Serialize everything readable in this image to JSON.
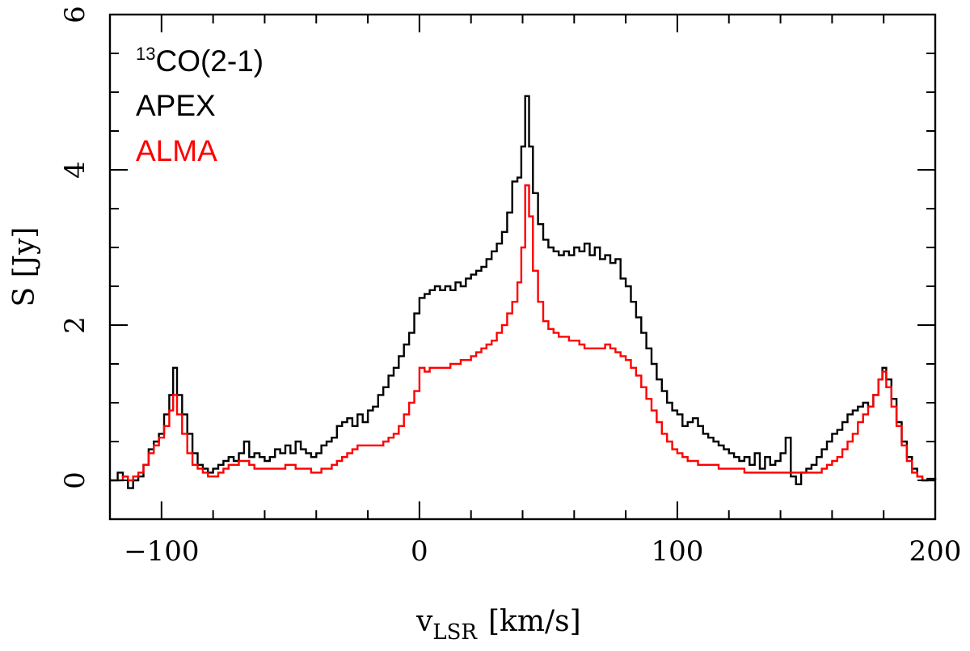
{
  "chart_data": {
    "type": "line",
    "style": "step",
    "xlabel": "v",
    "xlabel_sub": "LSR",
    "xlabel_units": "[km/s]",
    "ylabel": "S [Jy]",
    "xlim": [
      -120,
      200
    ],
    "ylim": [
      -0.5,
      6
    ],
    "xticks": [
      -100,
      0,
      100,
      200
    ],
    "xticklabels": [
      "−100",
      "0",
      "100",
      "200"
    ],
    "yticks": [
      0,
      2,
      4,
      6
    ],
    "yticklabels": [
      "0",
      "2",
      "4",
      "6"
    ],
    "legend": {
      "position": "top-left",
      "title_sup": "13",
      "title_main": "CO(2-1)",
      "entries": [
        {
          "label": "APEX",
          "color": "#000000"
        },
        {
          "label": "ALMA",
          "color": "#ff0000"
        }
      ]
    },
    "series": [
      {
        "name": "APEX",
        "color": "#000000",
        "points": [
          [
            -120,
            0.0
          ],
          [
            -117,
            0.1
          ],
          [
            -115,
            0.05
          ],
          [
            -113,
            -0.1
          ],
          [
            -111,
            0.0
          ],
          [
            -109,
            0.05
          ],
          [
            -107,
            0.2
          ],
          [
            -105,
            0.4
          ],
          [
            -103,
            0.5
          ],
          [
            -101,
            0.6
          ],
          [
            -99,
            0.85
          ],
          [
            -97,
            1.1
          ],
          [
            -95.5,
            1.45
          ],
          [
            -94,
            1.1
          ],
          [
            -92,
            0.85
          ],
          [
            -90,
            0.6
          ],
          [
            -88,
            0.35
          ],
          [
            -86,
            0.2
          ],
          [
            -84,
            0.15
          ],
          [
            -82,
            0.1
          ],
          [
            -80,
            0.15
          ],
          [
            -78,
            0.2
          ],
          [
            -76,
            0.25
          ],
          [
            -74,
            0.3
          ],
          [
            -72,
            0.25
          ],
          [
            -70,
            0.35
          ],
          [
            -68,
            0.5
          ],
          [
            -66,
            0.3
          ],
          [
            -64,
            0.35
          ],
          [
            -62,
            0.3
          ],
          [
            -60,
            0.25
          ],
          [
            -58,
            0.3
          ],
          [
            -56,
            0.4
          ],
          [
            -54,
            0.35
          ],
          [
            -52,
            0.45
          ],
          [
            -50,
            0.35
          ],
          [
            -48,
            0.5
          ],
          [
            -46,
            0.4
          ],
          [
            -44,
            0.35
          ],
          [
            -42,
            0.3
          ],
          [
            -40,
            0.35
          ],
          [
            -38,
            0.45
          ],
          [
            -36,
            0.5
          ],
          [
            -34,
            0.55
          ],
          [
            -32,
            0.7
          ],
          [
            -30,
            0.75
          ],
          [
            -28,
            0.8
          ],
          [
            -26,
            0.7
          ],
          [
            -24,
            0.85
          ],
          [
            -22,
            0.75
          ],
          [
            -20,
            0.9
          ],
          [
            -18,
            0.95
          ],
          [
            -16,
            1.1
          ],
          [
            -14,
            1.2
          ],
          [
            -12,
            1.35
          ],
          [
            -10,
            1.45
          ],
          [
            -8,
            1.6
          ],
          [
            -6,
            1.75
          ],
          [
            -4,
            1.9
          ],
          [
            -2,
            2.15
          ],
          [
            0,
            2.35
          ],
          [
            2,
            2.4
          ],
          [
            4,
            2.45
          ],
          [
            6,
            2.5
          ],
          [
            8,
            2.45
          ],
          [
            10,
            2.5
          ],
          [
            12,
            2.45
          ],
          [
            14,
            2.55
          ],
          [
            16,
            2.5
          ],
          [
            18,
            2.6
          ],
          [
            20,
            2.65
          ],
          [
            22,
            2.7
          ],
          [
            24,
            2.75
          ],
          [
            26,
            2.85
          ],
          [
            28,
            2.95
          ],
          [
            30,
            3.05
          ],
          [
            32,
            3.2
          ],
          [
            34,
            3.45
          ],
          [
            36,
            3.85
          ],
          [
            38,
            3.9
          ],
          [
            39.5,
            4.3
          ],
          [
            41,
            4.95
          ],
          [
            42.5,
            4.3
          ],
          [
            44,
            3.7
          ],
          [
            46,
            3.3
          ],
          [
            48,
            3.1
          ],
          [
            50,
            3.0
          ],
          [
            52,
            2.95
          ],
          [
            54,
            2.9
          ],
          [
            56,
            2.95
          ],
          [
            58,
            2.9
          ],
          [
            60,
            3.0
          ],
          [
            62,
            2.95
          ],
          [
            64,
            3.05
          ],
          [
            66,
            2.9
          ],
          [
            68,
            3.0
          ],
          [
            70,
            2.85
          ],
          [
            72,
            2.9
          ],
          [
            74,
            2.8
          ],
          [
            76,
            2.85
          ],
          [
            78,
            2.6
          ],
          [
            80,
            2.5
          ],
          [
            82,
            2.3
          ],
          [
            84,
            2.1
          ],
          [
            86,
            1.9
          ],
          [
            88,
            1.7
          ],
          [
            90,
            1.5
          ],
          [
            92,
            1.3
          ],
          [
            94,
            1.15
          ],
          [
            96,
            1.0
          ],
          [
            98,
            0.9
          ],
          [
            100,
            0.85
          ],
          [
            102,
            0.7
          ],
          [
            104,
            0.75
          ],
          [
            106,
            0.8
          ],
          [
            108,
            0.7
          ],
          [
            110,
            0.6
          ],
          [
            112,
            0.55
          ],
          [
            114,
            0.5
          ],
          [
            116,
            0.45
          ],
          [
            118,
            0.4
          ],
          [
            120,
            0.35
          ],
          [
            122,
            0.3
          ],
          [
            124,
            0.25
          ],
          [
            126,
            0.3
          ],
          [
            128,
            0.2
          ],
          [
            130,
            0.35
          ],
          [
            132,
            0.15
          ],
          [
            134,
            0.3
          ],
          [
            136,
            0.2
          ],
          [
            138,
            0.25
          ],
          [
            140,
            0.35
          ],
          [
            142,
            0.55
          ],
          [
            144,
            0.05
          ],
          [
            146,
            -0.05
          ],
          [
            148,
            0.1
          ],
          [
            150,
            0.15
          ],
          [
            152,
            0.2
          ],
          [
            154,
            0.3
          ],
          [
            156,
            0.4
          ],
          [
            158,
            0.5
          ],
          [
            160,
            0.6
          ],
          [
            162,
            0.65
          ],
          [
            164,
            0.75
          ],
          [
            166,
            0.85
          ],
          [
            168,
            0.9
          ],
          [
            170,
            0.95
          ],
          [
            172,
            1.0
          ],
          [
            174,
            0.95
          ],
          [
            176,
            1.1
          ],
          [
            178,
            1.3
          ],
          [
            179.5,
            1.45
          ],
          [
            181,
            1.3
          ],
          [
            183,
            1.05
          ],
          [
            185,
            0.75
          ],
          [
            187,
            0.5
          ],
          [
            189,
            0.3
          ],
          [
            191,
            0.15
          ],
          [
            193,
            0.05
          ],
          [
            195,
            0.0
          ],
          [
            197,
            0.02
          ],
          [
            200,
            0.0
          ]
        ]
      },
      {
        "name": "ALMA",
        "color": "#ff0000",
        "points": [
          [
            -120,
            0.0
          ],
          [
            -117,
            0.0
          ],
          [
            -115,
            0.05
          ],
          [
            -113,
            0.0
          ],
          [
            -111,
            0.05
          ],
          [
            -109,
            0.1
          ],
          [
            -107,
            0.2
          ],
          [
            -105,
            0.35
          ],
          [
            -103,
            0.45
          ],
          [
            -101,
            0.55
          ],
          [
            -99,
            0.7
          ],
          [
            -97,
            0.9
          ],
          [
            -95.5,
            1.1
          ],
          [
            -94,
            0.85
          ],
          [
            -92,
            0.6
          ],
          [
            -90,
            0.35
          ],
          [
            -88,
            0.2
          ],
          [
            -86,
            0.15
          ],
          [
            -84,
            0.1
          ],
          [
            -82,
            0.05
          ],
          [
            -80,
            0.05
          ],
          [
            -78,
            0.1
          ],
          [
            -76,
            0.15
          ],
          [
            -74,
            0.2
          ],
          [
            -72,
            0.2
          ],
          [
            -70,
            0.25
          ],
          [
            -68,
            0.25
          ],
          [
            -66,
            0.2
          ],
          [
            -64,
            0.15
          ],
          [
            -62,
            0.15
          ],
          [
            -60,
            0.15
          ],
          [
            -58,
            0.15
          ],
          [
            -56,
            0.15
          ],
          [
            -54,
            0.15
          ],
          [
            -52,
            0.2
          ],
          [
            -50,
            0.2
          ],
          [
            -48,
            0.15
          ],
          [
            -46,
            0.15
          ],
          [
            -44,
            0.15
          ],
          [
            -42,
            0.1
          ],
          [
            -40,
            0.1
          ],
          [
            -38,
            0.15
          ],
          [
            -36,
            0.15
          ],
          [
            -34,
            0.2
          ],
          [
            -32,
            0.25
          ],
          [
            -30,
            0.3
          ],
          [
            -28,
            0.35
          ],
          [
            -26,
            0.4
          ],
          [
            -24,
            0.45
          ],
          [
            -22,
            0.45
          ],
          [
            -20,
            0.45
          ],
          [
            -18,
            0.45
          ],
          [
            -16,
            0.45
          ],
          [
            -14,
            0.5
          ],
          [
            -12,
            0.55
          ],
          [
            -10,
            0.6
          ],
          [
            -8,
            0.7
          ],
          [
            -6,
            0.85
          ],
          [
            -4,
            1.0
          ],
          [
            -2,
            1.15
          ],
          [
            0,
            1.45
          ],
          [
            2,
            1.4
          ],
          [
            4,
            1.45
          ],
          [
            6,
            1.45
          ],
          [
            8,
            1.45
          ],
          [
            10,
            1.45
          ],
          [
            12,
            1.5
          ],
          [
            14,
            1.5
          ],
          [
            16,
            1.55
          ],
          [
            18,
            1.55
          ],
          [
            20,
            1.6
          ],
          [
            22,
            1.65
          ],
          [
            24,
            1.7
          ],
          [
            26,
            1.75
          ],
          [
            28,
            1.8
          ],
          [
            30,
            1.9
          ],
          [
            32,
            2.0
          ],
          [
            34,
            2.15
          ],
          [
            36,
            2.3
          ],
          [
            38,
            2.55
          ],
          [
            39.5,
            3.0
          ],
          [
            41,
            3.8
          ],
          [
            42.5,
            3.4
          ],
          [
            44,
            2.7
          ],
          [
            46,
            2.3
          ],
          [
            48,
            2.05
          ],
          [
            50,
            1.95
          ],
          [
            52,
            1.9
          ],
          [
            54,
            1.85
          ],
          [
            56,
            1.85
          ],
          [
            58,
            1.8
          ],
          [
            60,
            1.8
          ],
          [
            62,
            1.75
          ],
          [
            64,
            1.7
          ],
          [
            66,
            1.7
          ],
          [
            68,
            1.7
          ],
          [
            70,
            1.7
          ],
          [
            72,
            1.75
          ],
          [
            74,
            1.7
          ],
          [
            76,
            1.65
          ],
          [
            78,
            1.6
          ],
          [
            80,
            1.55
          ],
          [
            82,
            1.45
          ],
          [
            84,
            1.35
          ],
          [
            86,
            1.2
          ],
          [
            88,
            1.05
          ],
          [
            90,
            0.9
          ],
          [
            92,
            0.75
          ],
          [
            94,
            0.6
          ],
          [
            96,
            0.5
          ],
          [
            98,
            0.4
          ],
          [
            100,
            0.35
          ],
          [
            102,
            0.3
          ],
          [
            104,
            0.25
          ],
          [
            106,
            0.25
          ],
          [
            108,
            0.2
          ],
          [
            110,
            0.2
          ],
          [
            112,
            0.2
          ],
          [
            114,
            0.2
          ],
          [
            116,
            0.15
          ],
          [
            118,
            0.15
          ],
          [
            120,
            0.15
          ],
          [
            122,
            0.15
          ],
          [
            124,
            0.15
          ],
          [
            126,
            0.1
          ],
          [
            128,
            0.1
          ],
          [
            130,
            0.1
          ],
          [
            132,
            0.1
          ],
          [
            134,
            0.1
          ],
          [
            136,
            0.1
          ],
          [
            138,
            0.1
          ],
          [
            140,
            0.1
          ],
          [
            142,
            0.1
          ],
          [
            144,
            0.1
          ],
          [
            146,
            0.1
          ],
          [
            148,
            0.1
          ],
          [
            150,
            0.1
          ],
          [
            152,
            0.1
          ],
          [
            154,
            0.1
          ],
          [
            156,
            0.15
          ],
          [
            158,
            0.2
          ],
          [
            160,
            0.25
          ],
          [
            162,
            0.3
          ],
          [
            164,
            0.4
          ],
          [
            166,
            0.5
          ],
          [
            168,
            0.6
          ],
          [
            170,
            0.75
          ],
          [
            172,
            0.85
          ],
          [
            174,
            0.95
          ],
          [
            176,
            1.1
          ],
          [
            178,
            1.3
          ],
          [
            179.5,
            1.4
          ],
          [
            181,
            1.2
          ],
          [
            183,
            0.95
          ],
          [
            185,
            0.7
          ],
          [
            187,
            0.45
          ],
          [
            189,
            0.25
          ],
          [
            191,
            0.1
          ],
          [
            193,
            0.05
          ],
          [
            195,
            0.0
          ],
          [
            197,
            0.0
          ],
          [
            200,
            0.0
          ]
        ]
      }
    ]
  }
}
